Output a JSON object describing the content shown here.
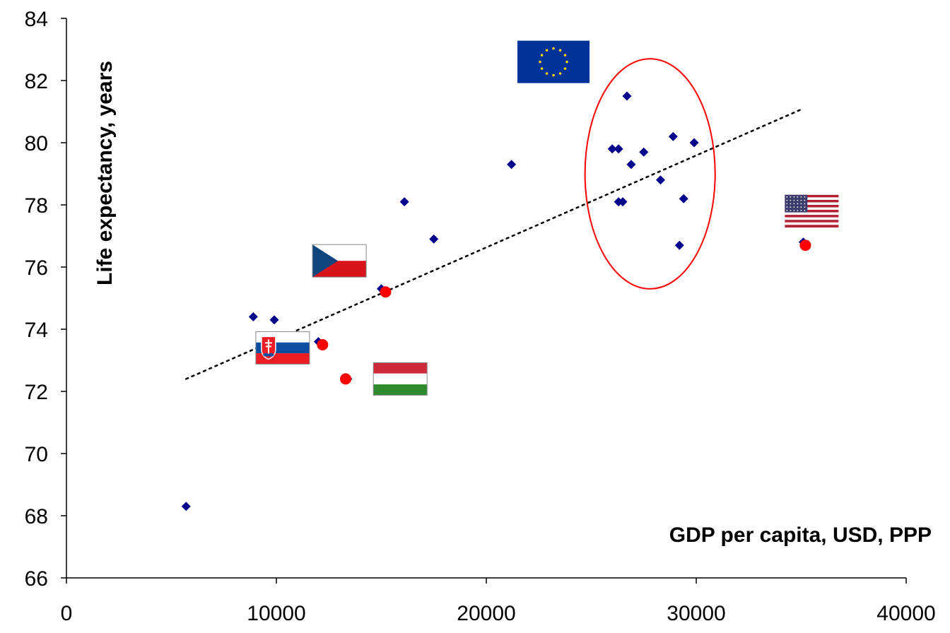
{
  "chart_data": {
    "type": "scatter",
    "title": "",
    "xlabel": "GDP per capita, USD, PPP",
    "ylabel": "Life expectancy, years",
    "xlim": [
      0,
      40000
    ],
    "ylim": [
      66,
      84
    ],
    "x_ticks": [
      "0",
      "10000",
      "20000",
      "30000",
      "40000"
    ],
    "y_ticks": [
      "66",
      "68",
      "70",
      "72",
      "74",
      "76",
      "78",
      "80",
      "82",
      "84"
    ],
    "grid": false,
    "legend": "none",
    "series": [
      {
        "marker": "diamond",
        "color": "#00008B",
        "points": [
          {
            "x": 5700,
            "y": 68.3
          },
          {
            "x": 8900,
            "y": 74.4
          },
          {
            "x": 9900,
            "y": 74.3
          },
          {
            "x": 12000,
            "y": 73.6
          },
          {
            "x": 13400,
            "y": 72.4
          },
          {
            "x": 15000,
            "y": 75.3
          },
          {
            "x": 16100,
            "y": 78.1
          },
          {
            "x": 17500,
            "y": 76.9
          },
          {
            "x": 21200,
            "y": 79.3
          },
          {
            "x": 26000,
            "y": 79.8
          },
          {
            "x": 26300,
            "y": 79.8
          },
          {
            "x": 26300,
            "y": 78.1
          },
          {
            "x": 26500,
            "y": 78.1
          },
          {
            "x": 26700,
            "y": 81.5
          },
          {
            "x": 26900,
            "y": 79.3
          },
          {
            "x": 27500,
            "y": 79.7
          },
          {
            "x": 28300,
            "y": 78.8
          },
          {
            "x": 28900,
            "y": 80.2
          },
          {
            "x": 29200,
            "y": 76.7
          },
          {
            "x": 29400,
            "y": 78.2
          },
          {
            "x": 29900,
            "y": 80.0
          },
          {
            "x": 35100,
            "y": 76.8
          }
        ]
      },
      {
        "marker": "circle",
        "color": "#FF0000",
        "points": [
          {
            "x": 12200,
            "y": 73.5
          },
          {
            "x": 13300,
            "y": 72.4
          },
          {
            "x": 15200,
            "y": 75.2
          },
          {
            "x": 35200,
            "y": 76.7
          }
        ]
      }
    ],
    "trendline": {
      "style": "dotted",
      "color": "#000000",
      "x": [
        5700,
        35100
      ],
      "y": [
        72.4,
        81.1
      ]
    },
    "highlight_ellipse": {
      "color": "#FF0000",
      "cx": 27800,
      "cy": 79.0,
      "rx": 3100,
      "ry": 3.7
    },
    "flags": [
      {
        "name": "eu-flag-icon",
        "x": 23200,
        "y": 82.6
      },
      {
        "name": "czech-flag-icon",
        "x": 13000,
        "y": 76.2
      },
      {
        "name": "slovakia-flag-icon",
        "x": 10300,
        "y": 73.4
      },
      {
        "name": "hungary-flag-icon",
        "x": 15900,
        "y": 72.4
      },
      {
        "name": "usa-flag-icon",
        "x": 35500,
        "y": 77.8
      }
    ]
  }
}
